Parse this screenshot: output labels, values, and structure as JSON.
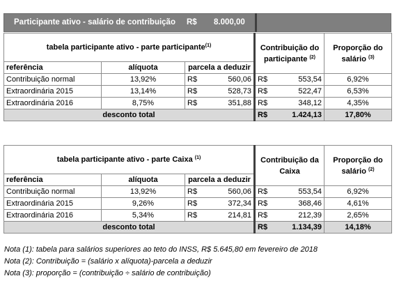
{
  "header": {
    "label": "Participante ativo - salário de contribuição",
    "currency": "R$",
    "value": "8.000,00"
  },
  "table1": {
    "title": "tabela participante ativo - parte participante",
    "title_note": "(1)",
    "col_contrib": "Contribuição do participante",
    "col_contrib_note": "(2)",
    "col_prop": "Proporção do salário",
    "col_prop_note": "(3)",
    "sub_referencia": "referência",
    "sub_aliquota": "alíquota",
    "sub_parcela": "parcela a deduzir",
    "rows": [
      {
        "ref": "Contribuição normal",
        "aliquota": "13,92%",
        "cur1": "R$",
        "parcela": "560,06",
        "cur2": "R$",
        "contrib": "553,54",
        "prop": "6,92%"
      },
      {
        "ref": "Extraordinária 2015",
        "aliquota": "13,14%",
        "cur1": "R$",
        "parcela": "528,73",
        "cur2": "R$",
        "contrib": "522,47",
        "prop": "6,53%"
      },
      {
        "ref": "Extraordinária 2016",
        "aliquota": "8,75%",
        "cur1": "R$",
        "parcela": "351,88",
        "cur2": "R$",
        "contrib": "348,12",
        "prop": "4,35%"
      }
    ],
    "total_label": "desconto total",
    "total_cur": "R$",
    "total_value": "1.424,13",
    "total_prop": "17,80%"
  },
  "table2": {
    "title": "tabela participante ativo - parte Caixa",
    "title_note": "(1)",
    "col_contrib": "Contribuição da Caixa",
    "col_prop": "Proporção do salário",
    "col_prop_note": "(2)",
    "sub_referencia": "referência",
    "sub_aliquota": "alíquota",
    "sub_parcela": "parcela a deduzir",
    "rows": [
      {
        "ref": "Contribuição normal",
        "aliquota": "13,92%",
        "cur1": "R$",
        "parcela": "560,06",
        "cur2": "R$",
        "contrib": "553,54",
        "prop": "6,92%"
      },
      {
        "ref": "Extraordinária 2015",
        "aliquota": "9,26%",
        "cur1": "R$",
        "parcela": "372,34",
        "cur2": "R$",
        "contrib": "368,46",
        "prop": "4,61%"
      },
      {
        "ref": "Extraordinária 2016",
        "aliquota": "5,34%",
        "cur1": "R$",
        "parcela": "214,81",
        "cur2": "R$",
        "contrib": "212,39",
        "prop": "2,65%"
      }
    ],
    "total_label": "desconto total",
    "total_cur": "R$",
    "total_value": "1.134,39",
    "total_prop": "14,18%"
  },
  "notes": [
    "Nota (1): tabela para salários superiores ao teto do INSS, R$ 5.645,80 em fevereiro de 2018",
    "Nota (2): Contribuição = (salário x alíquota)-parcela a deduzir",
    "Nota (3): proporção = (contribuição ÷ salário de contribuição)"
  ]
}
